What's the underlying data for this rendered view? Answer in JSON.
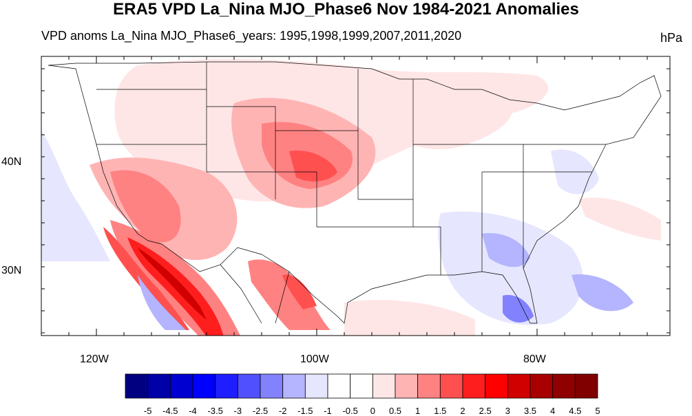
{
  "title": "ERA5 VPD La_Nina MJO_Phase6 Nov 1984-2021 Anomalies",
  "subtitle": "VPD anoms La_Nina MJO_Phase6_years: 1995,1998,1999,2007,2011,2020",
  "units": "hPa",
  "lat_labels": [
    "40N",
    "30N"
  ],
  "lon_labels": [
    "120W",
    "100W",
    "80W"
  ],
  "colorbar": {
    "labels": [
      "-5",
      "-4.5",
      "-4",
      "-3.5",
      "-3",
      "-2.5",
      "-2",
      "-1.5",
      "-1",
      "-0.5",
      "0",
      "0.5",
      "1",
      "1.5",
      "2",
      "2.5",
      "3",
      "3.5",
      "4",
      "4.5",
      "5"
    ],
    "colors": [
      "#000080",
      "#0000a8",
      "#0000d0",
      "#0000ff",
      "#1e1eff",
      "#5050ff",
      "#8282ff",
      "#b4b4ff",
      "#e6e6ff",
      "#ffffff",
      "#ffffff",
      "#ffe6e6",
      "#ffb4b4",
      "#ff8282",
      "#ff5050",
      "#ff1e1e",
      "#ff0000",
      "#d00000",
      "#a80000",
      "#900000",
      "#800000"
    ]
  }
}
